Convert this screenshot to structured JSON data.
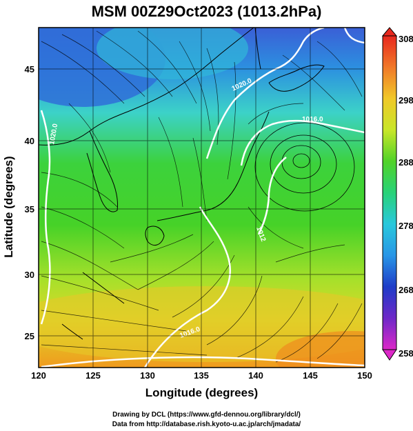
{
  "title": "MSM 00Z29Oct2023 (1013.2hPa)",
  "chart_data": {
    "type": "heatmap",
    "variable": "surface temperature with streamlines and isobars",
    "xlabel": "Longitude (degrees)",
    "ylabel": "Latitude  (degrees)",
    "xlim": [
      120,
      150
    ],
    "ylim": [
      22.5,
      47.5
    ],
    "x_ticks": [
      "120",
      "125",
      "130",
      "135",
      "140",
      "145",
      "150"
    ],
    "y_ticks": [
      "25",
      "30",
      "35",
      "40",
      "45"
    ],
    "colorbar": {
      "min": 258,
      "max": 308,
      "ticks": [
        "308",
        "298",
        "288",
        "278",
        "268",
        "258"
      ]
    },
    "contours": [
      {
        "label": "1020.0"
      },
      {
        "label": "1016.0"
      },
      {
        "label": "1020.0"
      },
      {
        "label": "1012"
      },
      {
        "label": "1016.0"
      }
    ],
    "grid": true
  },
  "credits": {
    "line1": "Drawing by DCL (https://www.gfd-dennou.org/library/dcl/)",
    "line2": "Data from http://database.rish.kyoto-u.ac.jp/arch/jmadata/"
  },
  "colors": {
    "cold": "#1e3cc8",
    "cool": "#28c8dc",
    "mild": "#3cd228",
    "warm": "#c8e628",
    "hot": "#f0a01e",
    "isobar": "#ffffff",
    "streamline": "#000000"
  }
}
